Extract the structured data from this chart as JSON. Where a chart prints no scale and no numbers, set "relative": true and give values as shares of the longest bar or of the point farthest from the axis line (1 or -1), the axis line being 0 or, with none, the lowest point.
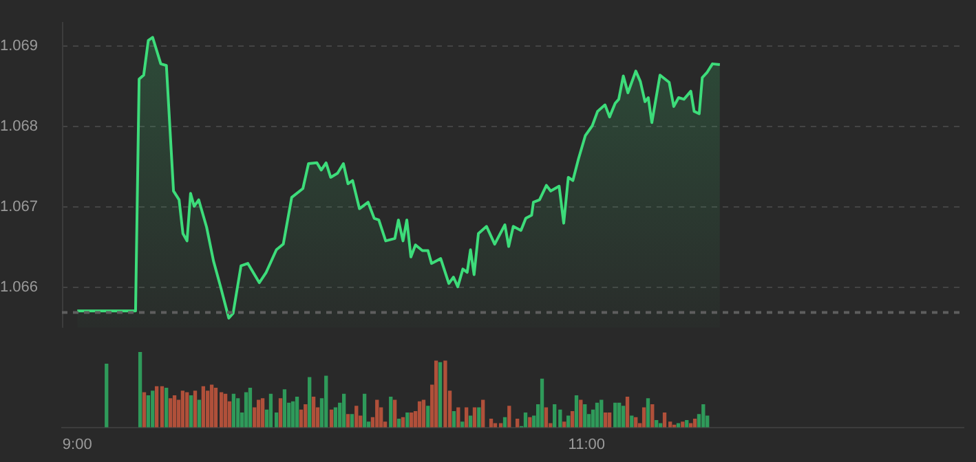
{
  "chart_data": [
    {
      "type": "area",
      "color": "#3ddc7a",
      "x": [
        9.0,
        9.229,
        9.243,
        9.261,
        9.279,
        9.296,
        9.328,
        9.35,
        9.378,
        9.4,
        9.415,
        9.431,
        9.445,
        9.459,
        9.477,
        9.508,
        9.535,
        9.562,
        9.595,
        9.612,
        9.643,
        9.67,
        9.715,
        9.742,
        9.782,
        9.809,
        9.842,
        9.886,
        9.908,
        9.941,
        9.958,
        9.977,
        9.995,
        10.022,
        10.045,
        10.063,
        10.081,
        10.108,
        10.142,
        10.166,
        10.184,
        10.211,
        10.247,
        10.261,
        10.279,
        10.294,
        10.31,
        10.328,
        10.355,
        10.377,
        10.391,
        10.427,
        10.459,
        10.477,
        10.494,
        10.514,
        10.531,
        10.544,
        10.558,
        10.575,
        10.607,
        10.639,
        10.679,
        10.694,
        10.712,
        10.742,
        10.761,
        10.784,
        10.791,
        10.815,
        10.842,
        10.859,
        10.892,
        10.91,
        10.928,
        10.946,
        10.968,
        10.995,
        11.022,
        11.043,
        11.072,
        11.09,
        11.112,
        11.126,
        11.144,
        11.162,
        11.193,
        11.211,
        11.229,
        11.242,
        11.256,
        11.288,
        11.324,
        11.342,
        11.361,
        11.382,
        11.409,
        11.422,
        11.442,
        11.454,
        11.472,
        11.494,
        11.523
      ],
      "values": [
        1.06571,
        1.06571,
        1.06859,
        1.06864,
        1.06907,
        1.06911,
        1.06878,
        1.06876,
        1.0672,
        1.06709,
        1.06667,
        1.06658,
        1.06717,
        1.06701,
        1.06709,
        1.06675,
        1.06633,
        1.06602,
        1.06562,
        1.06568,
        1.06627,
        1.0663,
        1.06606,
        1.06619,
        1.06647,
        1.06654,
        1.06712,
        1.06723,
        1.06754,
        1.06755,
        1.06746,
        1.06755,
        1.06737,
        1.06742,
        1.06754,
        1.06729,
        1.06733,
        1.06698,
        1.06706,
        1.06686,
        1.06684,
        1.06658,
        1.06661,
        1.06684,
        1.06658,
        1.06684,
        1.06638,
        1.06653,
        1.06646,
        1.06646,
        1.0663,
        1.06636,
        1.06605,
        1.06613,
        1.06601,
        1.06623,
        1.06619,
        1.06647,
        1.06616,
        1.06667,
        1.06676,
        1.06654,
        1.06678,
        1.06651,
        1.06676,
        1.06671,
        1.06686,
        1.0669,
        1.06706,
        1.06709,
        1.06727,
        1.0672,
        1.06726,
        1.0668,
        1.06737,
        1.06733,
        1.0676,
        1.06789,
        1.06801,
        1.06819,
        1.06827,
        1.06812,
        1.06829,
        1.06834,
        1.06863,
        1.06842,
        1.06869,
        1.06856,
        1.06831,
        1.06836,
        1.06805,
        1.06864,
        1.06855,
        1.06825,
        1.06836,
        1.06834,
        1.06844,
        1.06819,
        1.06816,
        1.06861,
        1.06867,
        1.06878,
        1.06877
      ],
      "xlim": [
        8.94,
        12.48
      ],
      "ylim": [
        1.0655,
        1.0693
      ],
      "yticks": [
        1.066,
        1.067,
        1.068,
        1.069
      ],
      "grid": "y",
      "tick_labels": "y",
      "ref_lines": [
        {
          "axis": "y",
          "value": 1.06569,
          "color": "#5e5e5e",
          "line_style": "dashed"
        }
      ]
    },
    {
      "type": "bar",
      "relative": true,
      "xlim": [
        8.94,
        12.48
      ],
      "xticks": [
        {
          "value": 9,
          "label": "9:00"
        },
        {
          "value": 11,
          "label": "11:00"
        }
      ],
      "tick_labels": "x",
      "x": [
        9.115,
        9.247,
        9.263,
        9.279,
        9.296,
        9.312,
        9.333,
        9.35,
        9.366,
        9.382,
        9.398,
        9.414,
        9.431,
        9.447,
        9.463,
        9.479,
        9.495,
        9.512,
        9.528,
        9.544,
        9.566,
        9.582,
        9.598,
        9.614,
        9.631,
        9.647,
        9.663,
        9.679,
        9.696,
        9.712,
        9.728,
        9.744,
        9.76,
        9.782,
        9.798,
        9.814,
        9.831,
        9.847,
        9.863,
        9.879,
        9.896,
        9.912,
        9.928,
        9.944,
        9.96,
        9.977,
        9.998,
        10.014,
        10.031,
        10.047,
        10.063,
        10.079,
        10.096,
        10.112,
        10.128,
        10.144,
        10.16,
        10.177,
        10.193,
        10.209,
        10.231,
        10.247,
        10.263,
        10.279,
        10.296,
        10.312,
        10.328,
        10.344,
        10.36,
        10.377,
        10.393,
        10.409,
        10.425,
        10.445,
        10.463,
        10.479,
        10.496,
        10.512,
        10.528,
        10.544,
        10.56,
        10.577,
        10.593,
        10.625,
        10.641,
        10.663,
        10.679,
        10.696,
        10.728,
        10.744,
        10.76,
        10.777,
        10.793,
        10.809,
        10.825,
        10.841,
        10.858,
        10.874,
        10.896,
        10.912,
        10.928,
        10.944,
        10.96,
        10.977,
        10.993,
        11.009,
        11.025,
        11.041,
        11.058,
        11.074,
        11.09,
        11.112,
        11.128,
        11.144,
        11.16,
        11.177,
        11.193,
        11.209,
        11.225,
        11.241,
        11.258,
        11.274,
        11.29,
        11.306,
        11.328,
        11.344,
        11.36,
        11.377,
        11.393,
        11.409,
        11.425,
        11.441,
        11.458,
        11.474
      ],
      "values": [
        0.84,
        1.0,
        0.46,
        0.42,
        0.48,
        0.54,
        0.54,
        0.52,
        0.38,
        0.42,
        0.36,
        0.48,
        0.46,
        0.42,
        0.48,
        0.36,
        0.54,
        0.48,
        0.56,
        0.52,
        0.46,
        0.44,
        0.34,
        0.44,
        0.38,
        0.19,
        0.46,
        0.52,
        0.26,
        0.36,
        0.38,
        0.23,
        0.44,
        0.19,
        0.38,
        0.5,
        0.32,
        0.34,
        0.4,
        0.23,
        0.3,
        0.66,
        0.4,
        0.26,
        0.38,
        0.68,
        0.23,
        0.26,
        0.32,
        0.44,
        0.17,
        0.17,
        0.28,
        0.15,
        0.44,
        0.07,
        0.13,
        0.36,
        0.26,
        0.07,
        0.4,
        0.36,
        0.11,
        0.13,
        0.19,
        0.19,
        0.21,
        0.34,
        0.36,
        0.28,
        0.56,
        0.88,
        0.86,
        0.88,
        0.48,
        0.21,
        0.26,
        0.07,
        0.26,
        0.15,
        0.26,
        0.26,
        0.36,
        0.11,
        0.05,
        0.05,
        0.13,
        0.28,
        0.11,
        0.01,
        0.19,
        0.13,
        0.15,
        0.3,
        0.64,
        0.26,
        0.05,
        0.3,
        0.23,
        0.07,
        0.15,
        0.21,
        0.42,
        0.36,
        0.3,
        0.17,
        0.23,
        0.32,
        0.36,
        0.19,
        0.19,
        0.32,
        0.32,
        0.28,
        0.4,
        0.15,
        0.13,
        0.05,
        0.26,
        0.38,
        0.3,
        0.09,
        0.05,
        0.19,
        0.07,
        0.03,
        0.05,
        0.07,
        0.09,
        0.05,
        0.11,
        0.17,
        0.3,
        0.15
      ],
      "colors": [
        "#2f9a5a",
        "#2f9a5a",
        "#b0503a",
        "#2f9a5a",
        "#2f9a5a",
        "#b0503a",
        "#b0503a",
        "#2f9a5a",
        "#b0503a",
        "#b0503a",
        "#b0503a",
        "#b0503a",
        "#b0503a",
        "#2f9a5a",
        "#b0503a",
        "#2f9a5a",
        "#b0503a",
        "#b0503a",
        "#b0503a",
        "#b0503a",
        "#b0503a",
        "#b0503a",
        "#b0503a",
        "#2f9a5a",
        "#2f9a5a",
        "#2f9a5a",
        "#2f9a5a",
        "#2f9a5a",
        "#b0503a",
        "#b0503a",
        "#b0503a",
        "#2f9a5a",
        "#2f9a5a",
        "#2f9a5a",
        "#b0503a",
        "#2f9a5a",
        "#2f9a5a",
        "#2f9a5a",
        "#2f9a5a",
        "#b0503a",
        "#b0503a",
        "#2f9a5a",
        "#b0503a",
        "#b0503a",
        "#2f9a5a",
        "#2f9a5a",
        "#b0503a",
        "#2f9a5a",
        "#2f9a5a",
        "#2f9a5a",
        "#b0503a",
        "#2f9a5a",
        "#b0503a",
        "#b0503a",
        "#2f9a5a",
        "#2f9a5a",
        "#b0503a",
        "#b0503a",
        "#b0503a",
        "#b0503a",
        "#2f9a5a",
        "#b0503a",
        "#2f9a5a",
        "#b0503a",
        "#2f9a5a",
        "#b0503a",
        "#b0503a",
        "#b0503a",
        "#b0503a",
        "#2f9a5a",
        "#b0503a",
        "#b0503a",
        "#2f9a5a",
        "#b0503a",
        "#b0503a",
        "#2f9a5a",
        "#b0503a",
        "#2f9a5a",
        "#b0503a",
        "#2f9a5a",
        "#b0503a",
        "#2f9a5a",
        "#b0503a",
        "#b0503a",
        "#b0503a",
        "#b0503a",
        "#2f9a5a",
        "#b0503a",
        "#b0503a",
        "#2f9a5a",
        "#2f9a5a",
        "#b0503a",
        "#2f9a5a",
        "#2f9a5a",
        "#2f9a5a",
        "#b0503a",
        "#b0503a",
        "#2f9a5a",
        "#2f9a5a",
        "#b0503a",
        "#2f9a5a",
        "#b0503a",
        "#2f9a5a",
        "#b0503a",
        "#2f9a5a",
        "#2f9a5a",
        "#2f9a5a",
        "#2f9a5a",
        "#2f9a5a",
        "#b0503a",
        "#b0503a",
        "#2f9a5a",
        "#2f9a5a",
        "#2f9a5a",
        "#b0503a",
        "#2f9a5a",
        "#b0503a",
        "#b0503a",
        "#b0503a",
        "#2f9a5a",
        "#b0503a",
        "#2f9a5a",
        "#2f9a5a",
        "#b0503a",
        "#b0503a",
        "#b0503a",
        "#2f9a5a",
        "#b0503a",
        "#2f9a5a",
        "#b0503a",
        "#b0503a",
        "#2f9a5a",
        "#2f9a5a",
        "#2f9a5a"
      ]
    }
  ]
}
